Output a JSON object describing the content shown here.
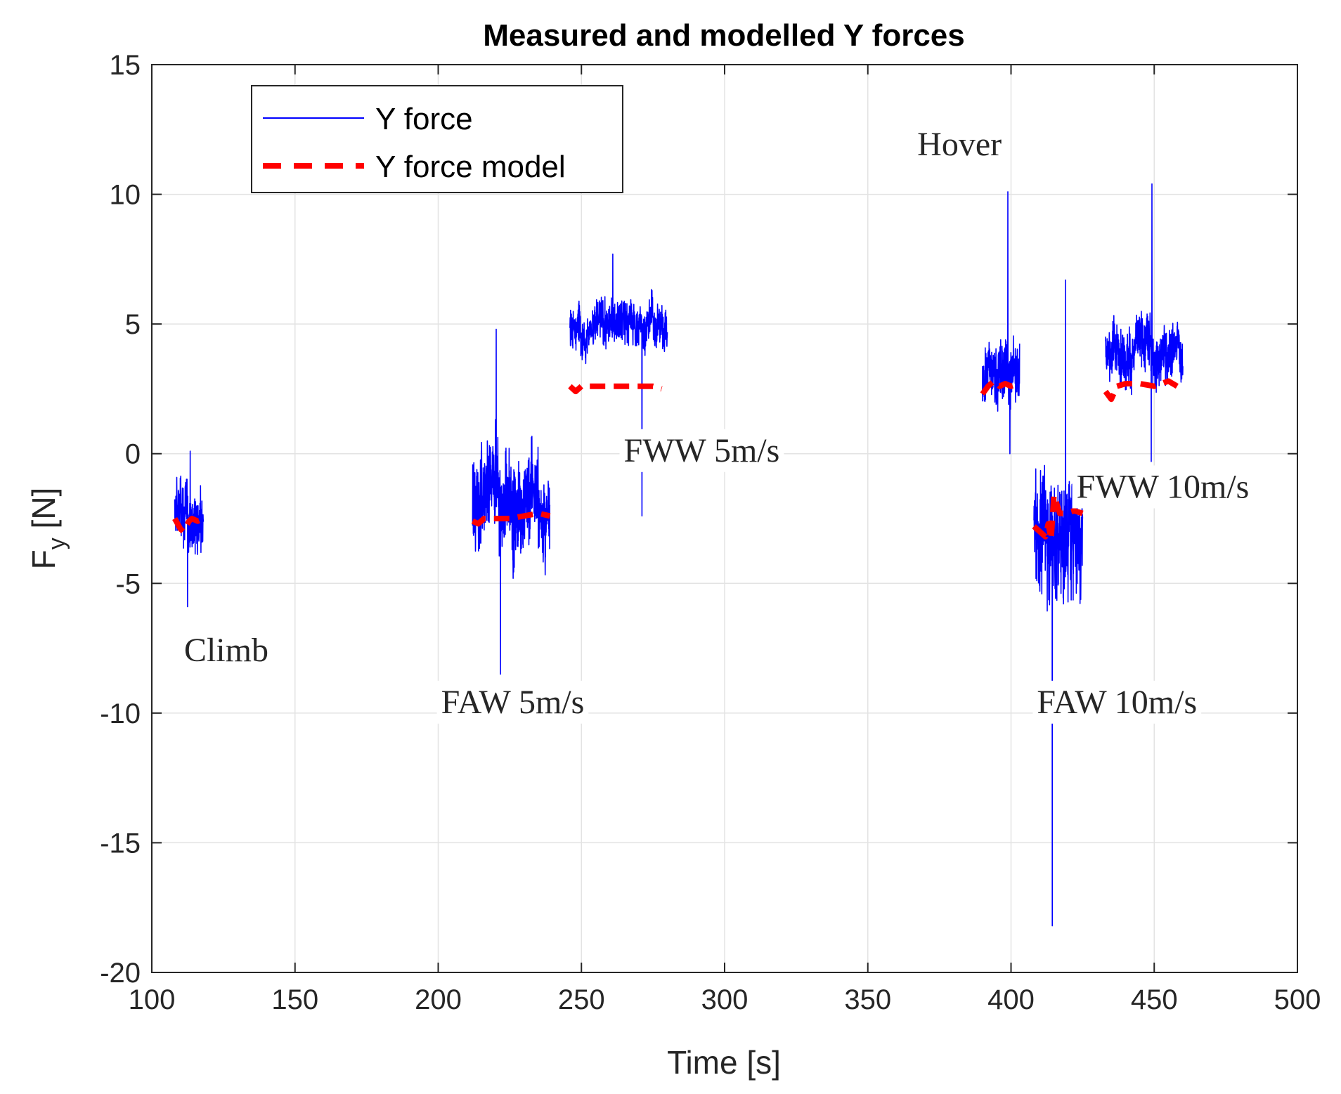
{
  "chart_data": {
    "type": "line",
    "title": "Measured and modelled Y forces",
    "xlabel": "Time [s]",
    "ylabel_main": "F",
    "ylabel_sub": "y",
    "ylabel_unit": " [N]",
    "xlim": [
      100,
      500
    ],
    "ylim": [
      -20,
      15
    ],
    "xticks": [
      100,
      150,
      200,
      250,
      300,
      350,
      400,
      450,
      500
    ],
    "yticks": [
      -20,
      -15,
      -10,
      -5,
      0,
      5,
      10,
      15
    ],
    "xtick_labels": [
      "100",
      "150",
      "200",
      "250",
      "300",
      "350",
      "400",
      "450",
      "500"
    ],
    "ytick_labels": [
      "-20",
      "-15",
      "-10",
      "-5",
      "0",
      "5",
      "10",
      "15"
    ],
    "grid": true,
    "legend": {
      "position": "top-left",
      "entries": [
        {
          "label": "Y force",
          "color": "#0000ff",
          "style": "solid"
        },
        {
          "label": "Y force model",
          "color": "#ff0000",
          "style": "dashed"
        }
      ]
    },
    "annotations": [
      {
        "text": "Climb",
        "x": 126,
        "y": -8
      },
      {
        "text": "FAW 5m/s",
        "x": 226,
        "y": -10
      },
      {
        "text": "FWW 5m/s",
        "x": 292,
        "y": -0.3
      },
      {
        "text": "Hover",
        "x": 382,
        "y": 11.5
      },
      {
        "text": "FAW 10m/s",
        "x": 437,
        "y": -10
      },
      {
        "text": "FWW 10m/s",
        "x": 453,
        "y": -1.7
      }
    ],
    "series": [
      {
        "name": "Y force",
        "color": "#0000ff",
        "segments": [
          {
            "name": "Climb",
            "t_start": 108,
            "t_end": 118,
            "mean": -2.5,
            "noise": 1.4,
            "min": -5.9,
            "max": 0.1
          },
          {
            "name": "FAW 5m/s",
            "t_start": 212,
            "t_end": 239,
            "mean": -2.0,
            "noise": 2.2,
            "min": -8.5,
            "max": 4.8
          },
          {
            "name": "FWW 5m/s",
            "t_start": 246,
            "t_end": 280,
            "mean": 5.0,
            "noise": 1.0,
            "min": -2.4,
            "max": 7.7
          },
          {
            "name": "Hover",
            "t_start": 390,
            "t_end": 403,
            "mean": 3.0,
            "noise": 1.4,
            "min": 0.0,
            "max": 10.1
          },
          {
            "name": "FAW 10m/s",
            "t_start": 408,
            "t_end": 425,
            "mean": -3.0,
            "noise": 2.8,
            "min": -18.2,
            "max": 6.7
          },
          {
            "name": "FWW 10m/s",
            "t_start": 433,
            "t_end": 460,
            "mean": 4.0,
            "noise": 1.2,
            "min": -0.3,
            "max": 10.4
          }
        ]
      },
      {
        "name": "Y force model",
        "color": "#ff0000",
        "segments": [
          {
            "x": [
              108,
              110,
              111,
              113,
              114,
              116,
              118
            ],
            "y": [
              -2.5,
              -2.9,
              -3.0,
              -2.6,
              -2.5,
              -2.6,
              -2.5
            ]
          },
          {
            "x": [
              212,
              214,
              216,
              220,
              225,
              230,
              235,
              239
            ],
            "y": [
              -2.6,
              -2.7,
              -2.5,
              -2.5,
              -2.5,
              -2.4,
              -2.3,
              -2.4
            ]
          },
          {
            "x": [
              246,
              248,
              250,
              255,
              260,
              265,
              270,
              275,
              278
            ],
            "y": [
              2.6,
              2.4,
              2.6,
              2.6,
              2.6,
              2.6,
              2.6,
              2.6,
              2.5
            ]
          },
          {
            "x": [
              390,
              392,
              394,
              396,
              398,
              400,
              403
            ],
            "y": [
              2.3,
              2.6,
              2.8,
              2.6,
              2.7,
              2.6,
              2.7
            ]
          },
          {
            "x": [
              408,
              410,
              412,
              413,
              414,
              415,
              417,
              419,
              422,
              425
            ],
            "y": [
              -2.8,
              -3.0,
              -3.2,
              -2.7,
              -3.3,
              -1.6,
              -2.3,
              -2.3,
              -2.2,
              -2.3
            ]
          },
          {
            "x": [
              433,
              435,
              437,
              440,
              445,
              450,
              455,
              458
            ],
            "y": [
              2.4,
              2.1,
              2.6,
              2.7,
              2.7,
              2.6,
              2.8,
              2.6
            ]
          }
        ]
      }
    ]
  }
}
